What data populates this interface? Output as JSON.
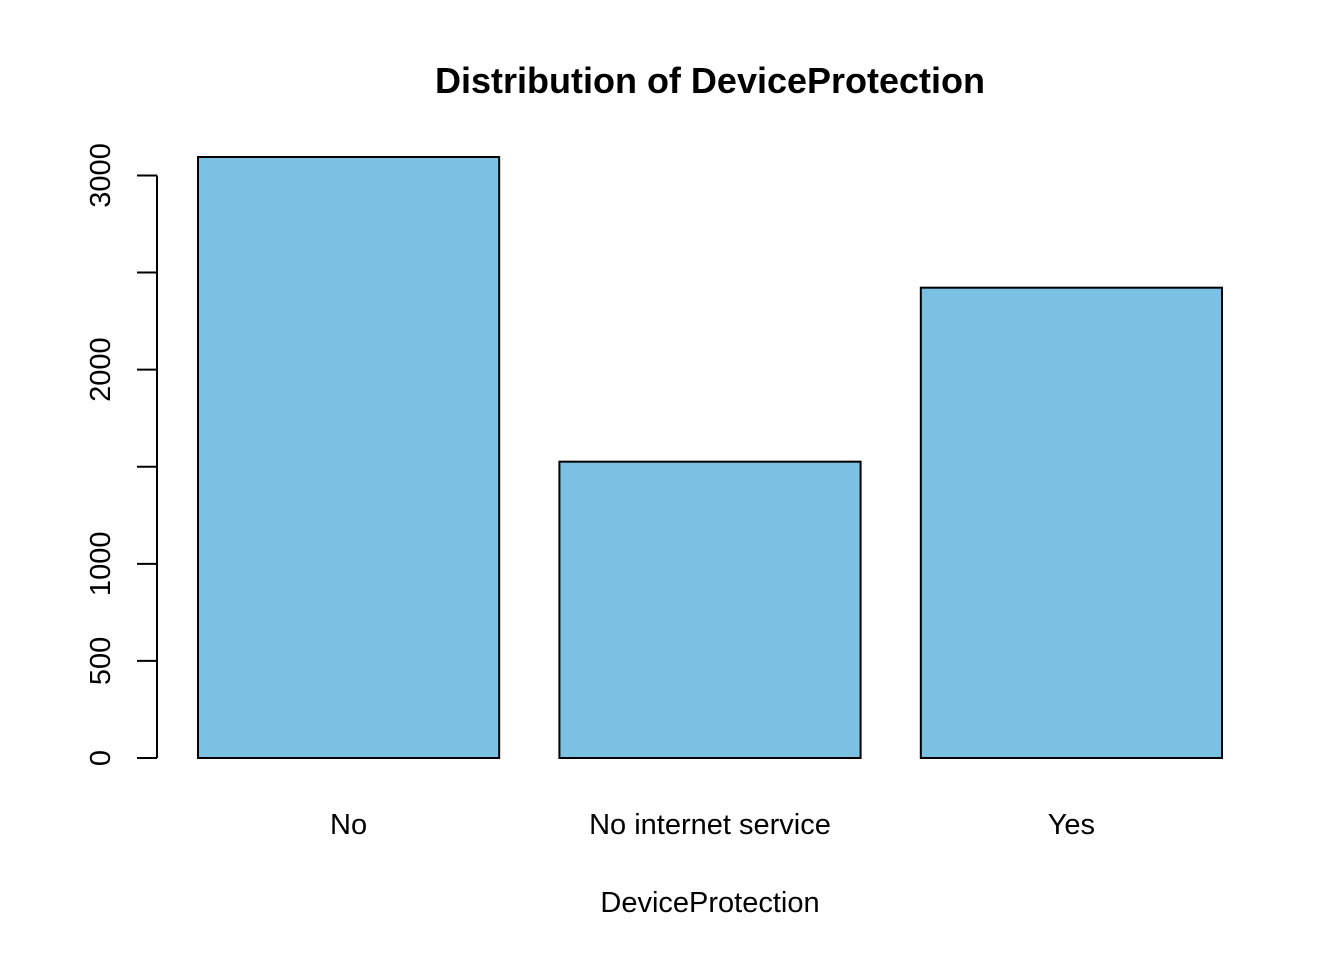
{
  "chart_data": {
    "type": "bar",
    "title": "Distribution of DeviceProtection",
    "xlabel": "DeviceProtection",
    "ylabel": "",
    "categories": [
      "No",
      "No internet service",
      "Yes"
    ],
    "values": [
      3095,
      1526,
      2422
    ],
    "ylim": [
      0,
      3095
    ],
    "yticks": [
      0,
      500,
      1000,
      1500,
      2000,
      2500,
      3000
    ],
    "ytick_labels": [
      "0",
      "500",
      "1000",
      "",
      "2000",
      "",
      "3000"
    ],
    "bar_color": "#7AC1E4",
    "grid": false,
    "legend": "none"
  }
}
